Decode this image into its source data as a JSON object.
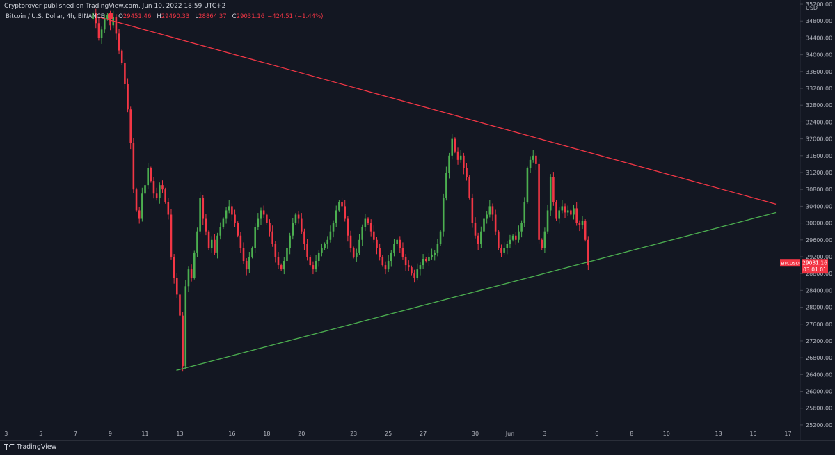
{
  "header": {
    "publisher_line": "Cryptorover published on TradingView.com, Jun 10, 2022 18:59 UTC+2"
  },
  "legend": {
    "symbol": "Bitcoin / U.S. Dollar, 4h, BINANCE",
    "open_key": "O",
    "open": "29451.46",
    "high_key": "H",
    "high": "29490.33",
    "low_key": "L",
    "low": "28864.37",
    "close_key": "C",
    "close": "29031.16",
    "change": "−424.51 (−1.44%)"
  },
  "price_badge": {
    "symbol": "BTCUSD",
    "price": "29031.16",
    "countdown": "03:01:01",
    "color": "#f23645"
  },
  "footer": {
    "brand": "TradingView"
  },
  "colors": {
    "background": "#131722",
    "up": "#4caf50",
    "down": "#f23645",
    "resistance_line": "#f23645",
    "support_line": "#4caf50",
    "axis_text": "#b2b5be"
  },
  "chart_data": {
    "type": "candlestick",
    "currency": "USD",
    "y_ticks": [
      "35200.00",
      "34800.00",
      "34400.00",
      "34000.00",
      "33600.00",
      "33200.00",
      "32800.00",
      "32400.00",
      "32000.00",
      "31600.00",
      "31200.00",
      "30800.00",
      "30400.00",
      "30000.00",
      "29600.00",
      "29200.00",
      "28800.00",
      "28400.00",
      "28000.00",
      "27600.00",
      "27200.00",
      "26800.00",
      "26400.00",
      "26000.00",
      "25600.00",
      "25200.00"
    ],
    "ylim": [
      25050,
      35300
    ],
    "x_ticks": [
      {
        "label": "3",
        "t": 0
      },
      {
        "label": "5",
        "t": 2
      },
      {
        "label": "7",
        "t": 4
      },
      {
        "label": "9",
        "t": 6
      },
      {
        "label": "11",
        "t": 8
      },
      {
        "label": "13",
        "t": 10
      },
      {
        "label": "16",
        "t": 13
      },
      {
        "label": "18",
        "t": 15
      },
      {
        "label": "20",
        "t": 17
      },
      {
        "label": "23",
        "t": 20
      },
      {
        "label": "25",
        "t": 22
      },
      {
        "label": "27",
        "t": 24
      },
      {
        "label": "30",
        "t": 27
      },
      {
        "label": "Jun",
        "t": 29
      },
      {
        "label": "3",
        "t": 31
      },
      {
        "label": "6",
        "t": 34
      },
      {
        "label": "8",
        "t": 36
      },
      {
        "label": "10",
        "t": 38
      },
      {
        "label": "13",
        "t": 41
      },
      {
        "label": "15",
        "t": 43
      },
      {
        "label": "17",
        "t": 45
      }
    ],
    "xlim": [
      -0.35,
      45.7
    ],
    "candles_per_day": 6,
    "first_candle_t": 5.0,
    "closes": [
      35000,
      34750,
      34400,
      34600,
      34850,
      34950,
      34700,
      34900,
      34500,
      34100,
      33800,
      33300,
      32700,
      31900,
      30800,
      30300,
      30100,
      30700,
      30900,
      31300,
      31000,
      30700,
      30600,
      30900,
      30800,
      30500,
      30200,
      29200,
      28700,
      28300,
      27800,
      26600,
      28500,
      28900,
      28700,
      29300,
      29800,
      30600,
      30100,
      29800,
      29400,
      29600,
      29300,
      29700,
      29900,
      30100,
      30300,
      30400,
      30200,
      30000,
      29700,
      29400,
      29100,
      28900,
      29200,
      29400,
      29900,
      30100,
      30300,
      30200,
      30000,
      29800,
      29500,
      29200,
      29000,
      28900,
      29100,
      29400,
      29700,
      30000,
      30200,
      30100,
      29800,
      29500,
      29200,
      29000,
      28900,
      29100,
      29300,
      29400,
      29500,
      29600,
      29800,
      30000,
      30300,
      30500,
      30400,
      30100,
      29700,
      29400,
      29200,
      29300,
      29600,
      29900,
      30100,
      30000,
      29800,
      29600,
      29400,
      29200,
      29000,
      28900,
      29100,
      29300,
      29500,
      29600,
      29400,
      29200,
      29000,
      28950,
      28800,
      28700,
      28900,
      29000,
      29150,
      29100,
      29200,
      29250,
      29300,
      29500,
      29800,
      30600,
      31200,
      31600,
      32000,
      31700,
      31500,
      31600,
      31300,
      31100,
      30600,
      30000,
      29700,
      29500,
      29800,
      30100,
      30200,
      30400,
      30200,
      29800,
      29400,
      29300,
      29400,
      29500,
      29600,
      29700,
      29600,
      29800,
      30000,
      30500,
      31300,
      31500,
      31600,
      31400,
      29600,
      29400,
      29800,
      30300,
      31100,
      30500,
      30100,
      30300,
      30400,
      30250,
      30300,
      30200,
      30350,
      30000,
      29950,
      30050,
      29600,
      29000
    ],
    "resistance_line": [
      {
        "t": 5.3,
        "price": 34900
      },
      {
        "t": 44.3,
        "price": 30450
      }
    ],
    "support_line": [
      {
        "t": 9.8,
        "price": 26500
      },
      {
        "t": 44.3,
        "price": 30250
      }
    ],
    "last_price": 29031.16
  }
}
